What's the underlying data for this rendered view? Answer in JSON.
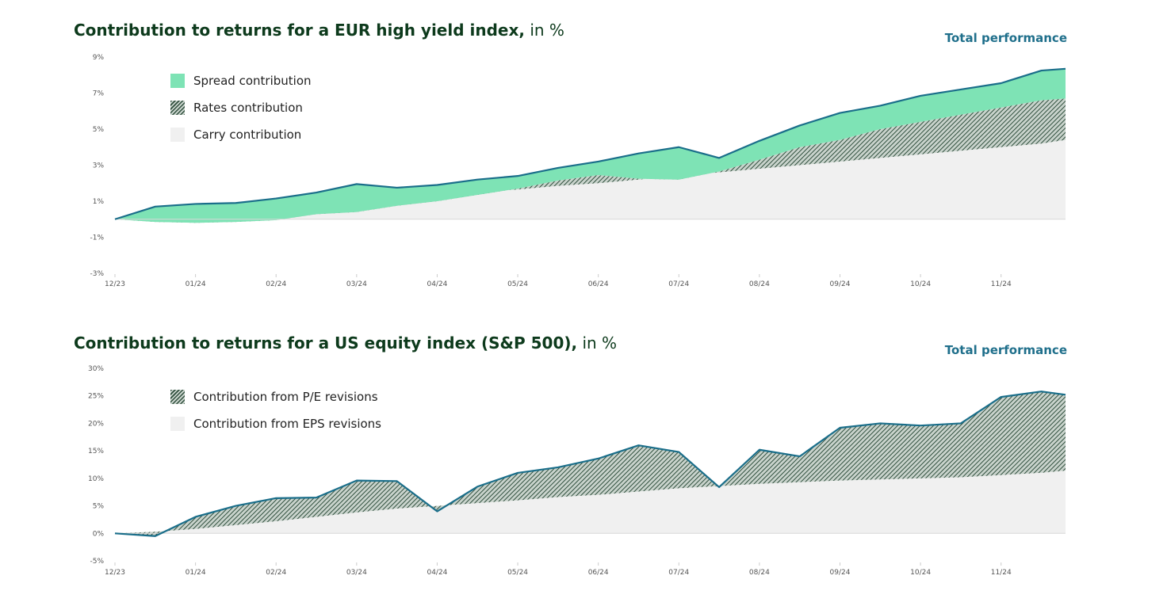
{
  "charts": [
    {
      "title": "Contribution to returns for a EUR high yield index,",
      "title_unit": "in %",
      "total_label": "Total performance",
      "legend": [
        "Spread contribution",
        "Rates contribution",
        "Carry contribution"
      ]
    },
    {
      "title": "Contribution to returns for a US equity index (S&P 500),",
      "title_unit": "in %",
      "total_label": "Total performance",
      "legend": [
        "Contribution from P/E revisions",
        "Contribution from EPS revisions"
      ]
    }
  ],
  "colors": {
    "title": "#0d3a1c",
    "total_line": "#1a6e8a",
    "spread": "#7ee3b5",
    "rates_hatch": "#2f4f3d",
    "carry": "#f0f0f0"
  },
  "chart_data": [
    {
      "type": "area",
      "title": "Contribution to returns for a EUR high yield index, in %",
      "x_tick_labels": [
        "12/23",
        "01/24",
        "02/24",
        "03/24",
        "04/24",
        "05/24",
        "06/24",
        "07/24",
        "08/24",
        "09/24",
        "10/24",
        "11/24"
      ],
      "y_tick_labels": [
        "9%",
        "7%",
        "5%",
        "3%",
        "1%",
        "-1%",
        "-3%"
      ],
      "ylim": [
        -3,
        9
      ],
      "x": [
        0,
        0.5,
        1,
        1.5,
        2,
        2.5,
        3,
        3.5,
        4,
        4.5,
        5,
        5.5,
        6,
        6.5,
        7,
        7.5,
        8,
        8.5,
        9,
        9.5,
        10,
        10.5,
        11,
        11.5,
        11.8
      ],
      "series": [
        {
          "name": "Carry contribution",
          "values": [
            0,
            0.15,
            0.3,
            0.45,
            0.6,
            0.78,
            0.95,
            1.15,
            1.3,
            1.5,
            1.65,
            1.85,
            2.0,
            2.2,
            2.4,
            2.6,
            2.8,
            3.0,
            3.2,
            3.4,
            3.6,
            3.8,
            4.0,
            4.2,
            4.4
          ]
        },
        {
          "name": "Rates contribution",
          "values": [
            0,
            -0.3,
            -0.5,
            -0.6,
            -0.65,
            -0.5,
            -0.55,
            -0.4,
            -0.3,
            -0.15,
            0.05,
            0.3,
            0.45,
            0.05,
            -0.2,
            0.05,
            0.5,
            1.0,
            1.2,
            1.6,
            1.8,
            2.0,
            2.2,
            2.4,
            2.3
          ]
        },
        {
          "name": "Spread contribution",
          "values": [
            0,
            0.85,
            1.05,
            1.05,
            1.2,
            1.2,
            1.55,
            1.0,
            0.9,
            0.85,
            0.7,
            0.7,
            0.75,
            1.4,
            1.8,
            0.75,
            1.05,
            1.2,
            1.5,
            1.3,
            1.45,
            1.4,
            1.35,
            1.65,
            1.65
          ]
        },
        {
          "name": "Total performance",
          "values": [
            0,
            0.7,
            0.85,
            0.9,
            1.15,
            1.48,
            1.95,
            1.75,
            1.9,
            2.2,
            2.4,
            2.85,
            3.2,
            3.65,
            4.0,
            3.4,
            4.35,
            5.2,
            5.9,
            6.3,
            6.85,
            7.2,
            7.55,
            8.25,
            8.35
          ]
        }
      ]
    },
    {
      "type": "area",
      "title": "Contribution to returns for a US equity index (S&P 500), in %",
      "x_tick_labels": [
        "12/23",
        "01/24",
        "02/24",
        "03/24",
        "04/24",
        "05/24",
        "06/24",
        "07/24",
        "08/24",
        "09/24",
        "10/24",
        "11/24"
      ],
      "y_tick_labels": [
        "30%",
        "25%",
        "20%",
        "15%",
        "10%",
        "5%",
        "0%",
        "-5%"
      ],
      "ylim": [
        -5,
        30
      ],
      "x": [
        0,
        0.5,
        1,
        1.5,
        2,
        2.5,
        3,
        3.5,
        4,
        4.5,
        5,
        5.5,
        6,
        6.5,
        7,
        7.5,
        8,
        8.5,
        9,
        9.5,
        10,
        10.5,
        11,
        11.5,
        11.8
      ],
      "series": [
        {
          "name": "Contribution from EPS revisions",
          "values": [
            0,
            0.3,
            0.8,
            1.5,
            2.2,
            3.0,
            3.8,
            4.5,
            5.0,
            5.5,
            6.0,
            6.6,
            7.0,
            7.6,
            8.2,
            8.6,
            9.0,
            9.3,
            9.6,
            9.8,
            10.0,
            10.2,
            10.6,
            11.0,
            11.4
          ]
        },
        {
          "name": "Contribution from P/E revisions",
          "values": [
            0,
            -0.8,
            2.2,
            3.5,
            4.2,
            3.5,
            5.8,
            5.0,
            -1.0,
            3.0,
            5.0,
            5.4,
            6.6,
            8.4,
            6.6,
            -0.2,
            6.2,
            4.7,
            9.6,
            10.2,
            9.6,
            9.8,
            14.2,
            14.8,
            13.8
          ]
        },
        {
          "name": "Total performance",
          "values": [
            0,
            -0.5,
            3.0,
            5.0,
            6.4,
            6.5,
            9.6,
            9.5,
            4.0,
            8.5,
            11.0,
            12.0,
            13.6,
            16.0,
            14.8,
            8.4,
            15.2,
            14.0,
            19.2,
            20.0,
            19.6,
            20.0,
            24.8,
            25.8,
            25.2
          ]
        }
      ]
    }
  ]
}
